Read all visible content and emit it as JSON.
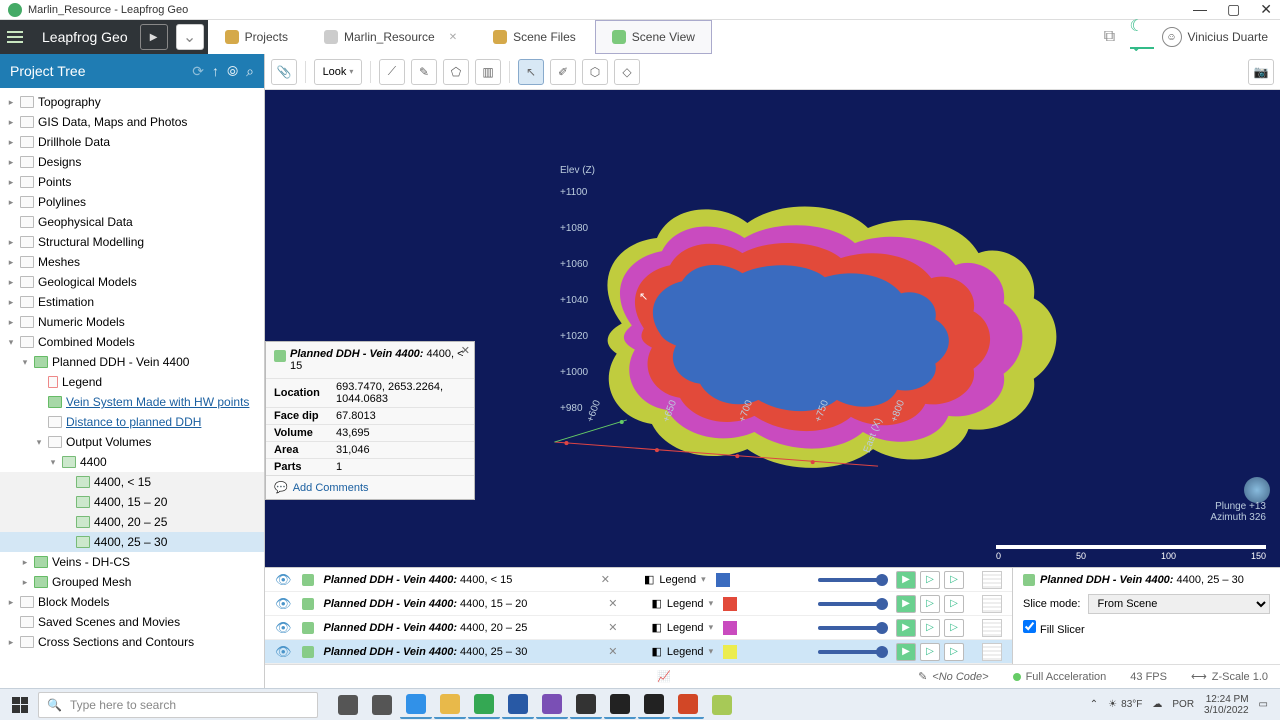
{
  "window_title": "Marlin_Resource - Leapfrog Geo",
  "app_name": "Leapfrog Geo",
  "tabs": [
    {
      "label": "Projects",
      "icon_color": "#d5a94a"
    },
    {
      "label": "Marlin_Resource",
      "icon_color": "#cccccc",
      "closable": true
    },
    {
      "label": "Scene Files",
      "icon_color": "#d5a94a"
    },
    {
      "label": "Scene View",
      "icon_color": "#7cc97c",
      "active": true
    }
  ],
  "user_name": "Vinicius Duarte",
  "project_tree": {
    "title": "Project Tree",
    "items": [
      {
        "label": "Topography",
        "indent": 0,
        "chev": "closed",
        "icon": "folder"
      },
      {
        "label": "GIS Data, Maps and Photos",
        "indent": 0,
        "chev": "closed",
        "icon": "folder"
      },
      {
        "label": "Drillhole Data",
        "indent": 0,
        "chev": "closed",
        "icon": "folder"
      },
      {
        "label": "Designs",
        "indent": 0,
        "chev": "closed",
        "icon": "folder"
      },
      {
        "label": "Points",
        "indent": 0,
        "chev": "closed",
        "icon": "folder"
      },
      {
        "label": "Polylines",
        "indent": 0,
        "chev": "closed",
        "icon": "folder"
      },
      {
        "label": "Geophysical Data",
        "indent": 0,
        "chev": "none",
        "icon": "folder"
      },
      {
        "label": "Structural Modelling",
        "indent": 0,
        "chev": "closed",
        "icon": "folder"
      },
      {
        "label": "Meshes",
        "indent": 0,
        "chev": "closed",
        "icon": "folder"
      },
      {
        "label": "Geological Models",
        "indent": 0,
        "chev": "closed",
        "icon": "folder"
      },
      {
        "label": "Estimation",
        "indent": 0,
        "chev": "closed",
        "icon": "folder"
      },
      {
        "label": "Numeric Models",
        "indent": 0,
        "chev": "closed",
        "icon": "folder"
      },
      {
        "label": "Combined Models",
        "indent": 0,
        "chev": "open",
        "icon": "folder"
      },
      {
        "label": "Planned DDH - Vein 4400",
        "indent": 1,
        "chev": "open",
        "icon": "mdl"
      },
      {
        "label": "Legend",
        "indent": 2,
        "chev": "none",
        "icon": "legend"
      },
      {
        "label": "Vein System Made with HW points",
        "indent": 2,
        "chev": "none",
        "icon": "mdl",
        "link": true
      },
      {
        "label": "Distance to planned DDH",
        "indent": 2,
        "chev": "none",
        "icon": "folder",
        "link": true
      },
      {
        "label": "Output Volumes",
        "indent": 2,
        "chev": "open",
        "icon": "folder"
      },
      {
        "label": "4400",
        "indent": 3,
        "chev": "open",
        "icon": "mdl2"
      },
      {
        "label": "4400, < 15",
        "indent": 4,
        "chev": "none",
        "icon": "mdl2",
        "hl": true
      },
      {
        "label": "4400, 15 – 20",
        "indent": 4,
        "chev": "none",
        "icon": "mdl2",
        "hl": true
      },
      {
        "label": "4400, 20 – 25",
        "indent": 4,
        "chev": "none",
        "icon": "mdl2",
        "hl": true
      },
      {
        "label": "4400, 25 – 30",
        "indent": 4,
        "chev": "none",
        "icon": "mdl2",
        "selected": true
      },
      {
        "label": "Veins - DH-CS",
        "indent": 1,
        "chev": "closed",
        "icon": "mdl"
      },
      {
        "label": "Grouped Mesh",
        "indent": 1,
        "chev": "closed",
        "icon": "mdl"
      },
      {
        "label": "Block Models",
        "indent": 0,
        "chev": "closed",
        "icon": "folder"
      },
      {
        "label": "Saved Scenes and Movies",
        "indent": 0,
        "chev": "none",
        "icon": "folder"
      },
      {
        "label": "Cross Sections and Contours",
        "indent": 0,
        "chev": "closed",
        "icon": "folder"
      }
    ]
  },
  "toolbar": {
    "look_label": "Look"
  },
  "viewport": {
    "background": "#0e1a5a",
    "elev_label": "Elev (Z)",
    "east_label": "East (X)",
    "y_ticks": [
      "+1100",
      "+1080",
      "+1060",
      "+1040",
      "+1020",
      "+1000",
      "+980"
    ],
    "x_ticks": [
      "+600",
      "+650",
      "+700",
      "+750",
      "+800"
    ],
    "plunge": "Plunge  +13",
    "azimuth": "Azimuth 326",
    "scale_ticks": [
      "0",
      "50",
      "100",
      "150"
    ],
    "blob_colors": {
      "outer": "#c0cc3e",
      "ring2": "#c94bbf",
      "ring3": "#e24a3a",
      "core": "#3a6bbf"
    }
  },
  "info_popup": {
    "title_model": "Planned DDH - Vein 4400:",
    "title_range": " 4400, < 15",
    "rows": [
      {
        "k": "Location",
        "v": "693.7470, 2653.2264, 1044.0683"
      },
      {
        "k": "Face dip",
        "v": "67.8013"
      },
      {
        "k": "Volume",
        "v": "43,695"
      },
      {
        "k": "Area",
        "v": "31,046"
      },
      {
        "k": "Parts",
        "v": "1"
      }
    ],
    "add_comments": "Add Comments"
  },
  "layers": [
    {
      "name": "Planned DDH - Vein 4400:",
      "range": " 4400, < 15",
      "legend": "Legend",
      "swatch": "#3a6bbf"
    },
    {
      "name": "Planned DDH - Vein 4400:",
      "range": " 4400, 15 – 20",
      "legend": "Legend",
      "swatch": "#e24a3a"
    },
    {
      "name": "Planned DDH - Vein 4400:",
      "range": " 4400, 20 – 25",
      "legend": "Legend",
      "swatch": "#c94bbf"
    },
    {
      "name": "Planned DDH - Vein 4400:",
      "range": " 4400, 25 – 30",
      "legend": "Legend",
      "swatch": "#ecec4e",
      "selected": true
    }
  ],
  "layer_props": {
    "title_model": "Planned DDH - Vein 4400:",
    "title_range": " 4400, 25 – 30",
    "slice_label": "Slice mode:",
    "slice_value": "From Scene",
    "fill_label": "Fill Slicer"
  },
  "work_status": {
    "code": "<No Code>",
    "accel": "Full Acceleration",
    "fps": "43 FPS",
    "zscale": "Z-Scale 1.0"
  },
  "taskbar": {
    "search_placeholder": "Type here to search",
    "weather_temp": "83°F",
    "lang": "POR",
    "time": "12:24 PM",
    "date": "3/10/2022",
    "app_colors": [
      "#555555",
      "#555555",
      "#3191e8",
      "#e8b94a",
      "#34a853",
      "#2859a5",
      "#7a4fb5",
      "#333333",
      "#222222",
      "#222222",
      "#d24726",
      "#a7c957"
    ]
  }
}
